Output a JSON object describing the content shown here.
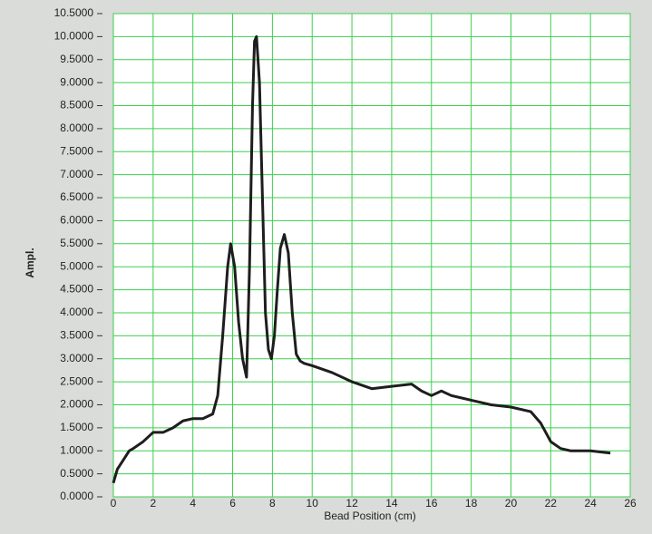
{
  "chart_data": {
    "type": "line",
    "x_label": "Bead Position (cm)",
    "y_label": "Ampl.",
    "xlim": [
      0,
      26
    ],
    "xticks": [
      0,
      2,
      4,
      6,
      8,
      10,
      12,
      14,
      16,
      18,
      20,
      22,
      24,
      26
    ],
    "ylim": [
      0,
      10.5
    ],
    "yticks": [
      {
        "value": 0,
        "label": "0.0000"
      },
      {
        "value": 0.5,
        "label": "0.5000"
      },
      {
        "value": 1,
        "label": "1.0000"
      },
      {
        "value": 1.5,
        "label": "1.5000"
      },
      {
        "value": 2,
        "label": "2.0000"
      },
      {
        "value": 2.5,
        "label": "2.5000"
      },
      {
        "value": 3,
        "label": "3.0000"
      },
      {
        "value": 3.5,
        "label": "3.5000"
      },
      {
        "value": 4,
        "label": "4.0000"
      },
      {
        "value": 4.5,
        "label": "4.5000"
      },
      {
        "value": 5,
        "label": "5.0000"
      },
      {
        "value": 5.5,
        "label": "5.5000"
      },
      {
        "value": 6,
        "label": "6.0000"
      },
      {
        "value": 6.5,
        "label": "6.5000"
      },
      {
        "value": 7,
        "label": "7.0000"
      },
      {
        "value": 7.5,
        "label": "7.5000"
      },
      {
        "value": 8,
        "label": "8.0000"
      },
      {
        "value": 8.5,
        "label": "8.5000"
      },
      {
        "value": 9,
        "label": "9.0000"
      },
      {
        "value": 9.5,
        "label": "9.5000"
      },
      {
        "value": 10,
        "label": "10.0000"
      },
      {
        "value": 10.5,
        "label": "10.5000"
      }
    ],
    "grid": true,
    "color": "#1e1e1e",
    "x": [
      0,
      0.2,
      0.5,
      0.8,
      1,
      1.5,
      2,
      2.5,
      3,
      3.5,
      4,
      4.5,
      5,
      5.25,
      5.5,
      5.75,
      5.9,
      6.1,
      6.3,
      6.5,
      6.7,
      6.85,
      7,
      7.1,
      7.2,
      7.35,
      7.5,
      7.65,
      7.8,
      7.95,
      8.1,
      8.25,
      8.4,
      8.6,
      8.8,
      9.0,
      9.2,
      9.4,
      9.6,
      10,
      11,
      12,
      13,
      14,
      15,
      15.5,
      16,
      16.5,
      17,
      18,
      19,
      20,
      21,
      21.5,
      22,
      22.5,
      23,
      24,
      25
    ],
    "values": [
      0.3,
      0.6,
      0.8,
      1.0,
      1.05,
      1.2,
      1.4,
      1.4,
      1.5,
      1.65,
      1.7,
      1.7,
      1.8,
      2.2,
      3.5,
      5.0,
      5.5,
      5.0,
      3.8,
      3.0,
      2.6,
      5.0,
      8.5,
      9.9,
      10.0,
      9.0,
      6.5,
      4.0,
      3.2,
      3.0,
      3.5,
      4.5,
      5.4,
      5.7,
      5.3,
      4.0,
      3.1,
      2.95,
      2.9,
      2.85,
      2.7,
      2.5,
      2.35,
      2.4,
      2.45,
      2.3,
      2.2,
      2.3,
      2.2,
      2.1,
      2.0,
      1.95,
      1.85,
      1.6,
      1.2,
      1.05,
      1.0,
      1.0,
      0.95
    ]
  }
}
